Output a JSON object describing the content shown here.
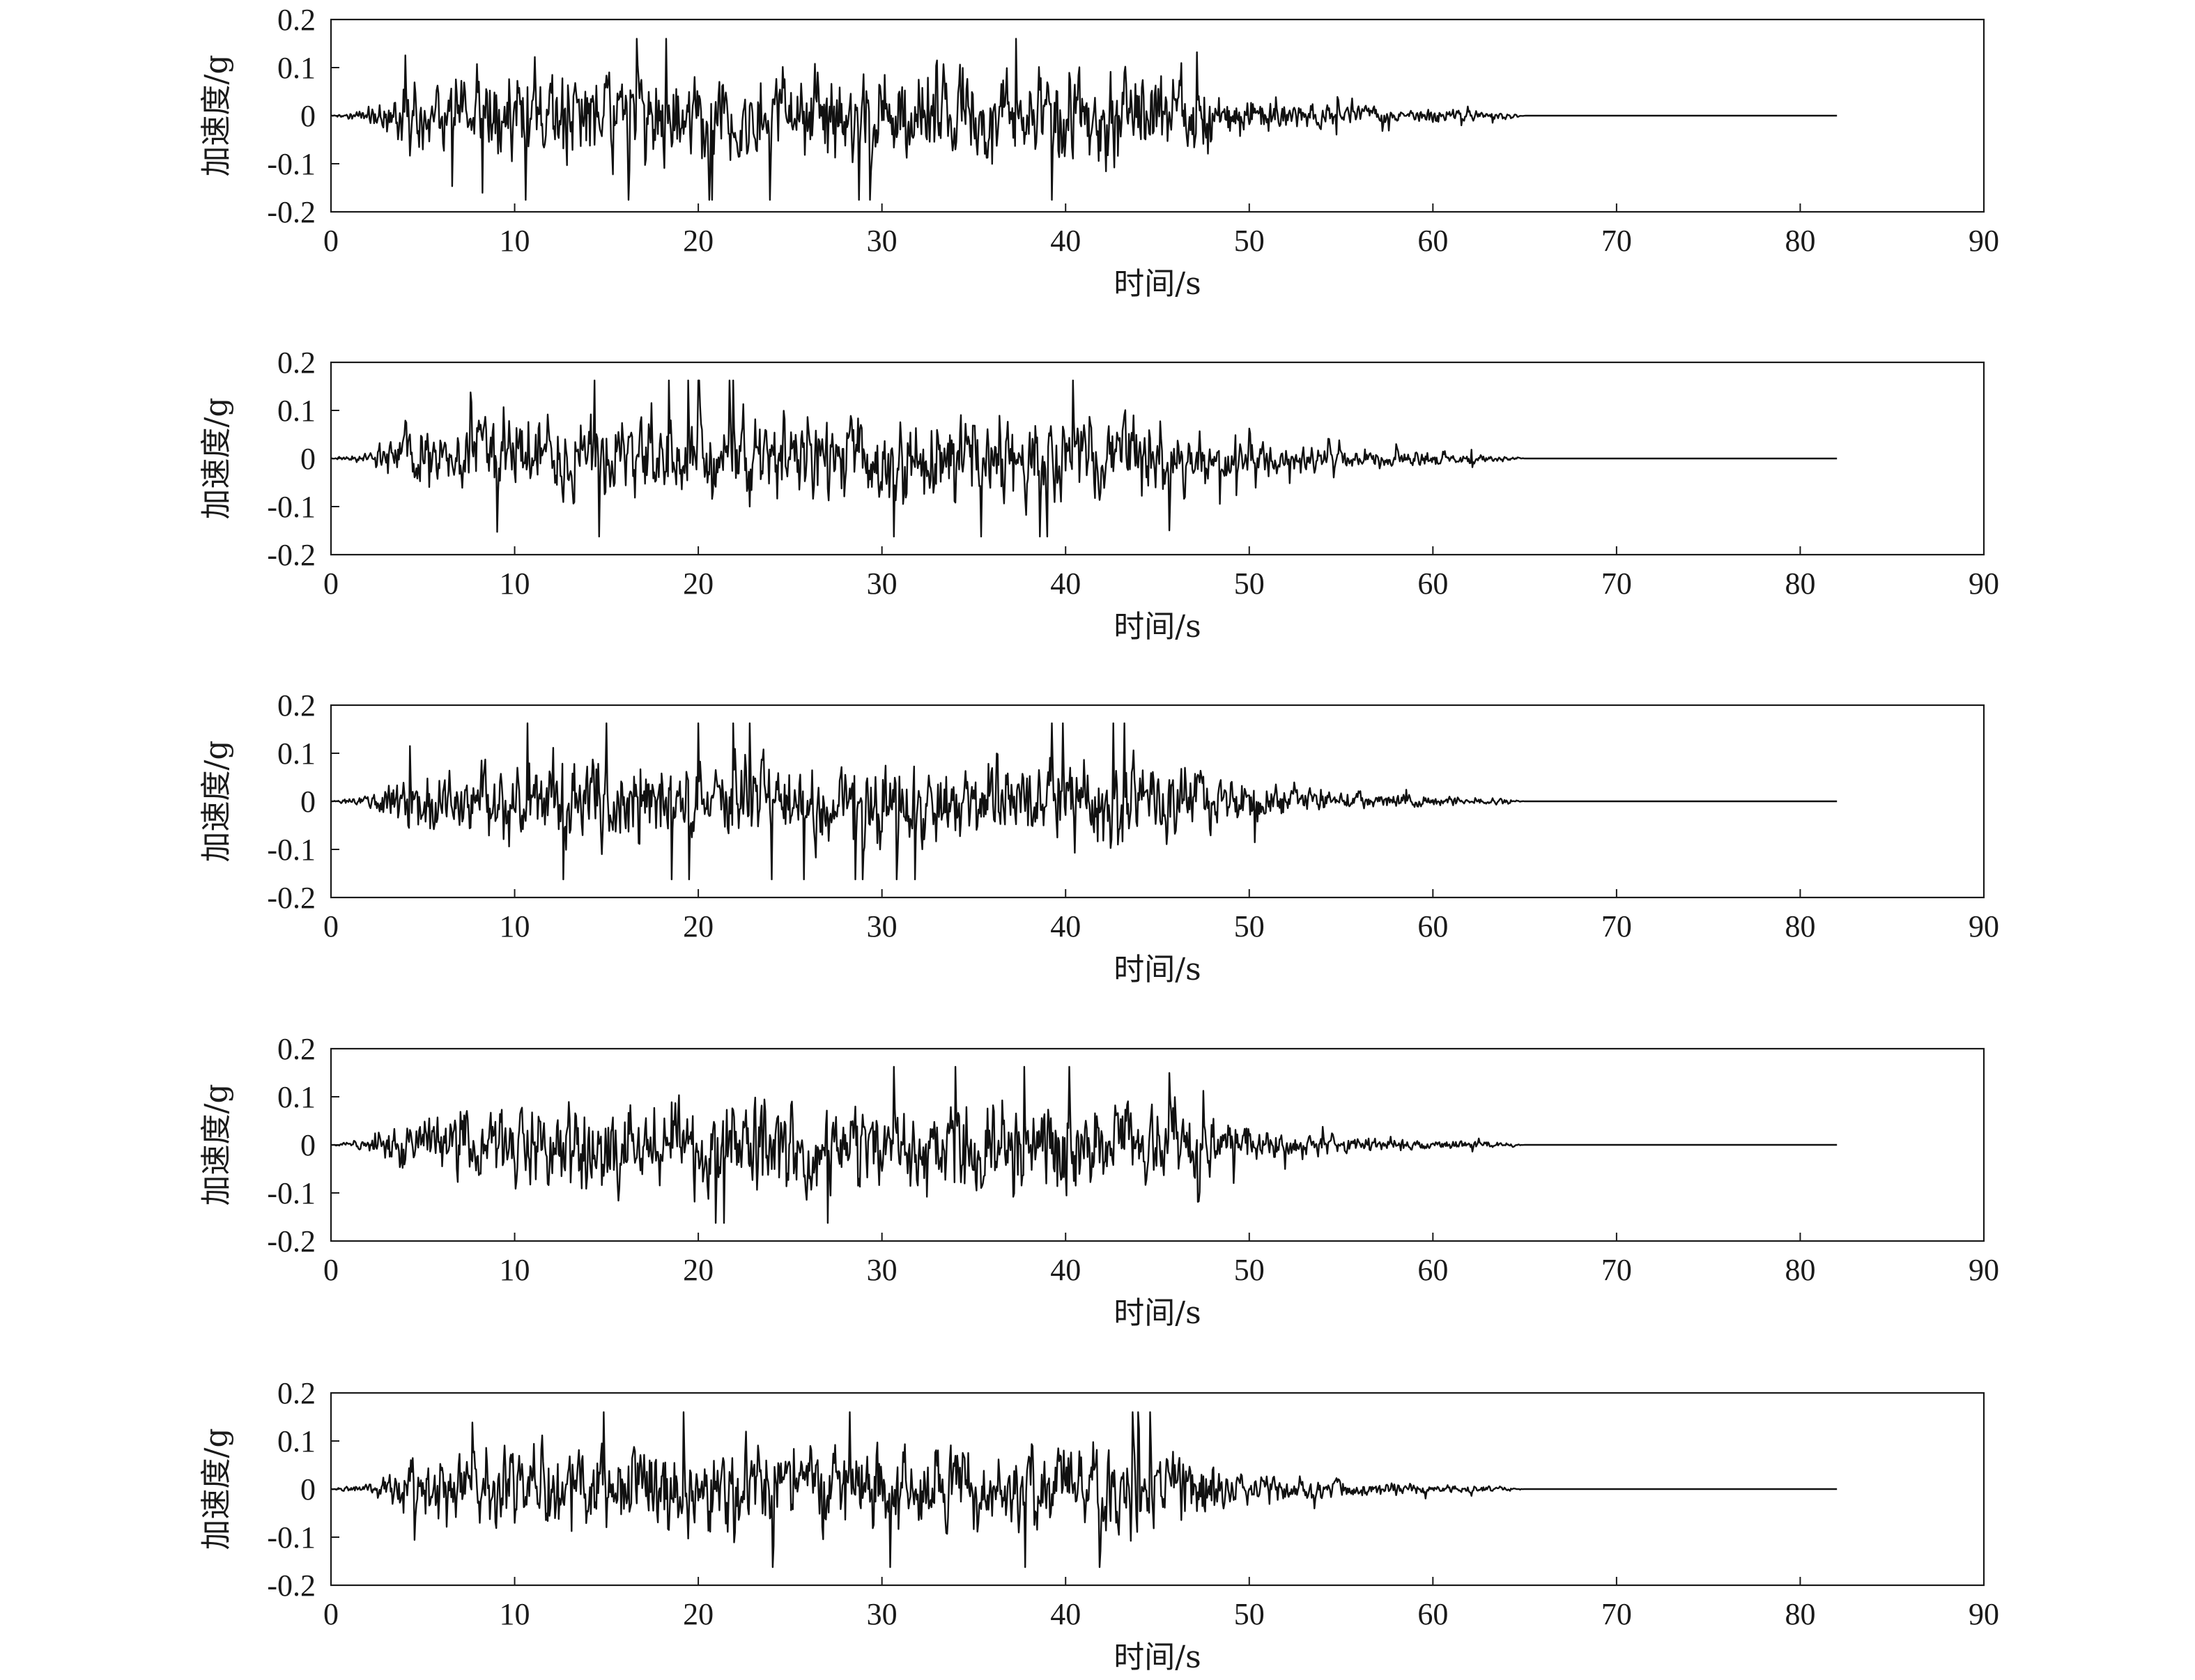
{
  "chart_data": [
    {
      "type": "line",
      "xlabel": "时间/s",
      "ylabel": "加速度/g",
      "xlim": [
        0,
        90
      ],
      "ylim": [
        -0.2,
        0.2
      ],
      "xticks": [
        "0",
        "10",
        "20",
        "30",
        "40",
        "50",
        "60",
        "70",
        "80",
        "90"
      ],
      "yticks": [
        "0.2",
        "0.1",
        "0",
        "-0.1",
        "-0.2"
      ],
      "grid": false,
      "series": [
        {
          "peak_max": 0.16,
          "peak_min": -0.18,
          "signal_end_s": 82,
          "envelope": {
            "x": [
              0,
              2,
              4,
              10,
              45,
              50,
              55,
              60,
              64,
              65,
              82
            ],
            "y": [
              0.0,
              0.02,
              0.1,
              0.14,
              0.14,
              0.06,
              0.03,
              0.02,
              0.01,
              0.0,
              0.0
            ]
          }
        }
      ]
    },
    {
      "type": "line",
      "xlabel": "时间/s",
      "ylabel": "加速度/g",
      "xlim": [
        0,
        90
      ],
      "ylim": [
        -0.2,
        0.2
      ],
      "xticks": [
        "0",
        "10",
        "20",
        "30",
        "40",
        "50",
        "60",
        "70",
        "80",
        "90"
      ],
      "yticks": [
        "0.2",
        "0.1",
        "0",
        "-0.1",
        "-0.2"
      ],
      "grid": false,
      "series": [
        {
          "peak_max": 0.18,
          "peak_min": -0.17,
          "signal_end_s": 82,
          "envelope": {
            "x": [
              0,
              2,
              4,
              10,
              45,
              50,
              55,
              60,
              64,
              65,
              82
            ],
            "y": [
              0.0,
              0.02,
              0.08,
              0.13,
              0.13,
              0.05,
              0.03,
              0.02,
              0.01,
              0.0,
              0.0
            ]
          }
        }
      ]
    },
    {
      "type": "line",
      "xlabel": "时间/s",
      "ylabel": "加速度/g",
      "xlim": [
        0,
        90
      ],
      "ylim": [
        -0.2,
        0.2
      ],
      "xticks": [
        "0",
        "10",
        "20",
        "30",
        "40",
        "50",
        "60",
        "70",
        "80",
        "90"
      ],
      "yticks": [
        "0.2",
        "0.1",
        "0",
        "-0.1",
        "-0.2"
      ],
      "grid": false,
      "series": [
        {
          "peak_max": 0.18,
          "peak_min": -0.17,
          "signal_end_s": 82,
          "envelope": {
            "x": [
              0,
              2,
              4,
              10,
              45,
              51,
              55,
              60,
              64,
              65,
              82
            ],
            "y": [
              0.0,
              0.02,
              0.09,
              0.13,
              0.13,
              0.06,
              0.03,
              0.015,
              0.008,
              0.0,
              0.0
            ]
          }
        }
      ]
    },
    {
      "type": "line",
      "xlabel": "时间/s",
      "ylabel": "加速度/g",
      "xlim": [
        0,
        90
      ],
      "ylim": [
        -0.2,
        0.2
      ],
      "xticks": [
        "0",
        "10",
        "20",
        "30",
        "40",
        "50",
        "60",
        "70",
        "80",
        "90"
      ],
      "yticks": [
        "0.2",
        "0.1",
        "0",
        "-0.1",
        "-0.2"
      ],
      "grid": false,
      "series": [
        {
          "peak_max": 0.18,
          "peak_min": -0.18,
          "signal_end_s": 82,
          "envelope": {
            "x": [
              0,
              2,
              4,
              10,
              45,
              50,
              55,
              60,
              64,
              65,
              82
            ],
            "y": [
              0.0,
              0.02,
              0.09,
              0.13,
              0.13,
              0.05,
              0.025,
              0.015,
              0.008,
              0.0,
              0.0
            ]
          }
        }
      ]
    },
    {
      "type": "line",
      "xlabel": "时间/s",
      "ylabel": "加速度/g",
      "xlim": [
        0,
        90
      ],
      "ylim": [
        -0.2,
        0.2
      ],
      "xticks": [
        "0",
        "10",
        "20",
        "30",
        "40",
        "50",
        "60",
        "70",
        "80",
        "90"
      ],
      "yticks": [
        "0.2",
        "0.1",
        "0",
        "-0.1",
        "-0.2"
      ],
      "grid": false,
      "series": [
        {
          "peak_max": 0.16,
          "peak_min": -0.18,
          "signal_end_s": 82,
          "envelope": {
            "x": [
              0,
              2,
              4,
              10,
              45,
              50,
              55,
              60,
              64,
              65,
              82
            ],
            "y": [
              0.0,
              0.02,
              0.08,
              0.13,
              0.13,
              0.05,
              0.025,
              0.015,
              0.008,
              0.0,
              0.0
            ]
          }
        }
      ]
    }
  ]
}
